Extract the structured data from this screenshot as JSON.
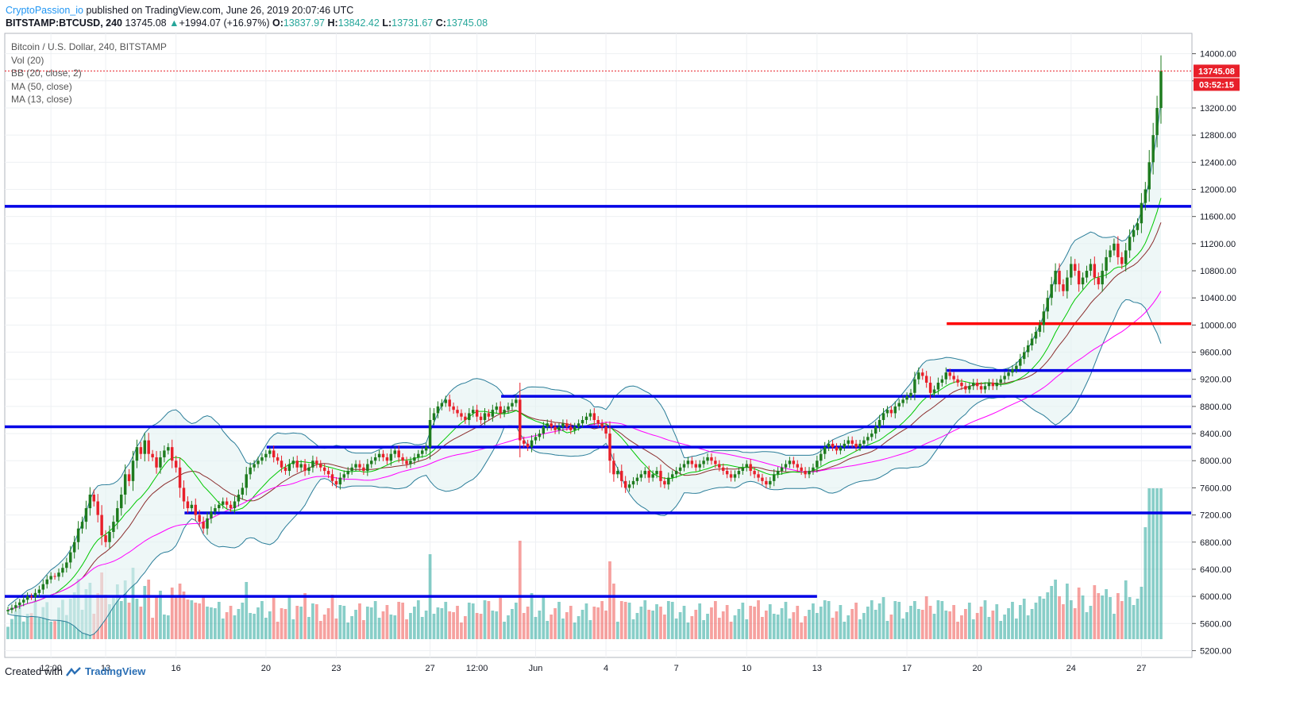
{
  "header": {
    "author": "CryptoPassion_io",
    "published": "published on TradingView.com, June 26, 2019 20:07:46 UTC",
    "symbol": "BITSTAMP:BTCUSD, 240",
    "last": "13745.08",
    "change": "+1994.07 (+16.97%)",
    "o_label": "O:",
    "o": "13837.97",
    "h_label": "H:",
    "h": "13842.42",
    "l_label": "L:",
    "l": "13731.67",
    "c_label": "C:",
    "c": "13745.08"
  },
  "legend": {
    "title": "Bitcoin / U.S. Dollar, 240, BITSTAMP",
    "items": [
      "Vol (20)",
      "BB (20, close, 2)",
      "MA (50, close)",
      "MA (13, close)"
    ]
  },
  "footer": {
    "created": "Created with",
    "brand": "TradingView"
  },
  "colors": {
    "bull": "#26a69a",
    "bear": "#ef5350",
    "bull_candle": "#1e7b1e",
    "bear_candle": "#e8202a",
    "support": "#0000e6",
    "resistance_red": "#ff0000",
    "ma13": "#00c800",
    "ma50": "#ff00ff",
    "ma_mid": "#8b2e2e",
    "bb": "#2a7d99"
  },
  "chart_data": {
    "type": "candlestick",
    "title": "Bitcoin / U.S. Dollar, 240, BITSTAMP",
    "ylim": [
      5100,
      14300
    ],
    "y_ticks": [
      5200,
      5600,
      6000,
      6400,
      6800,
      7200,
      7600,
      8000,
      8400,
      8800,
      9200,
      9600,
      10000,
      10400,
      10800,
      11200,
      11600,
      12000,
      12400,
      12800,
      13200,
      13600,
      14000
    ],
    "y_tick_labels": [
      "5200.00",
      "5600.00",
      "6000.00",
      "6400.00",
      "6800.00",
      "7200.00",
      "7600.00",
      "8000.00",
      "8400.00",
      "8800.00",
      "9200.00",
      "9600.00",
      "10000.00",
      "10400.00",
      "10800.00",
      "11200.00",
      "11600.00",
      "12000.00",
      "12400.00",
      "12800.00",
      "13200.00",
      "13600.00",
      "14000.00"
    ],
    "x_ticks": [
      {
        "label": "12:00",
        "idx": 11
      },
      {
        "label": "13",
        "idx": 25
      },
      {
        "label": "16",
        "idx": 43
      },
      {
        "label": "20",
        "idx": 66
      },
      {
        "label": "23",
        "idx": 84
      },
      {
        "label": "27",
        "idx": 108
      },
      {
        "label": "12:00",
        "idx": 120
      },
      {
        "label": "Jun",
        "idx": 135
      },
      {
        "label": "4",
        "idx": 153
      },
      {
        "label": "7",
        "idx": 171
      },
      {
        "label": "10",
        "idx": 189
      },
      {
        "label": "13",
        "idx": 207
      },
      {
        "label": "17",
        "idx": 230
      },
      {
        "label": "20",
        "idx": 248
      },
      {
        "label": "24",
        "idx": 272
      },
      {
        "label": "27",
        "idx": 290
      }
    ],
    "last_price": "13745.08",
    "countdown": "03:52:15",
    "closes": [
      5800,
      5830,
      5870,
      5910,
      5950,
      6000,
      5990,
      6050,
      6100,
      6180,
      6250,
      6300,
      6290,
      6350,
      6420,
      6500,
      6650,
      6800,
      7000,
      7100,
      7300,
      7500,
      7400,
      7200,
      6900,
      6800,
      6950,
      7100,
      7300,
      7500,
      7800,
      7700,
      8000,
      8200,
      8100,
      8300,
      8100,
      8050,
      7900,
      8050,
      8150,
      8200,
      8000,
      7900,
      7600,
      7400,
      7300,
      7350,
      7200,
      7100,
      7000,
      7150,
      7250,
      7300,
      7350,
      7400,
      7350,
      7300,
      7400,
      7500,
      7600,
      7800,
      7900,
      7950,
      8000,
      8050,
      8100,
      8150,
      8050,
      8000,
      7900,
      7850,
      7950,
      8000,
      7900,
      7950,
      7850,
      7900,
      8000,
      7950,
      7900,
      7850,
      7800,
      7700,
      7650,
      7750,
      7800,
      7850,
      7900,
      7950,
      7900,
      7850,
      7950,
      8000,
      8050,
      8100,
      8050,
      8000,
      8100,
      8150,
      8050,
      8000,
      7950,
      8000,
      8050,
      8100,
      8150,
      8200,
      8600,
      8700,
      8800,
      8850,
      8900,
      8800,
      8750,
      8700,
      8650,
      8600,
      8700,
      8750,
      8650,
      8600,
      8700,
      8650,
      8750,
      8800,
      8700,
      8750,
      8800,
      8850,
      8900,
      8300,
      8250,
      8200,
      8300,
      8350,
      8400,
      8500,
      8550,
      8500,
      8450,
      8500,
      8550,
      8500,
      8450,
      8500,
      8550,
      8600,
      8650,
      8700,
      8600,
      8550,
      8500,
      8400,
      8000,
      7800,
      7850,
      7700,
      7600,
      7650,
      7700,
      7750,
      7800,
      7850,
      7750,
      7800,
      7850,
      7700,
      7650,
      7750,
      7800,
      7850,
      7900,
      7950,
      8000,
      7950,
      7900,
      7950,
      8000,
      8050,
      8000,
      7950,
      7900,
      7850,
      7800,
      7750,
      7800,
      7850,
      7900,
      7950,
      7850,
      7800,
      7750,
      7700,
      7650,
      7700,
      7800,
      7850,
      7900,
      7950,
      8000,
      7950,
      7900,
      7850,
      7800,
      7850,
      7900,
      8000,
      8100,
      8200,
      8250,
      8200,
      8150,
      8200,
      8250,
      8300,
      8250,
      8200,
      8250,
      8300,
      8350,
      8400,
      8500,
      8600,
      8700,
      8750,
      8700,
      8800,
      8850,
      8900,
      8950,
      9000,
      9200,
      9300,
      9250,
      9150,
      9000,
      9050,
      9150,
      9200,
      9300,
      9250,
      9200,
      9150,
      9100,
      9050,
      9100,
      9150,
      9100,
      9050,
      9100,
      9150,
      9100,
      9150,
      9200,
      9250,
      9300,
      9350,
      9400,
      9500,
      9600,
      9700,
      9800,
      9900,
      10000,
      10200,
      10400,
      10600,
      10800,
      10600,
      10500,
      10700,
      10900,
      10800,
      10600,
      10700,
      10800,
      10900,
      10700,
      10600,
      10800,
      11000,
      11100,
      11200,
      11000,
      10900,
      11100,
      11300,
      11400,
      11500,
      11800,
      12000,
      12400,
      12800,
      13200,
      13745
    ]
  }
}
